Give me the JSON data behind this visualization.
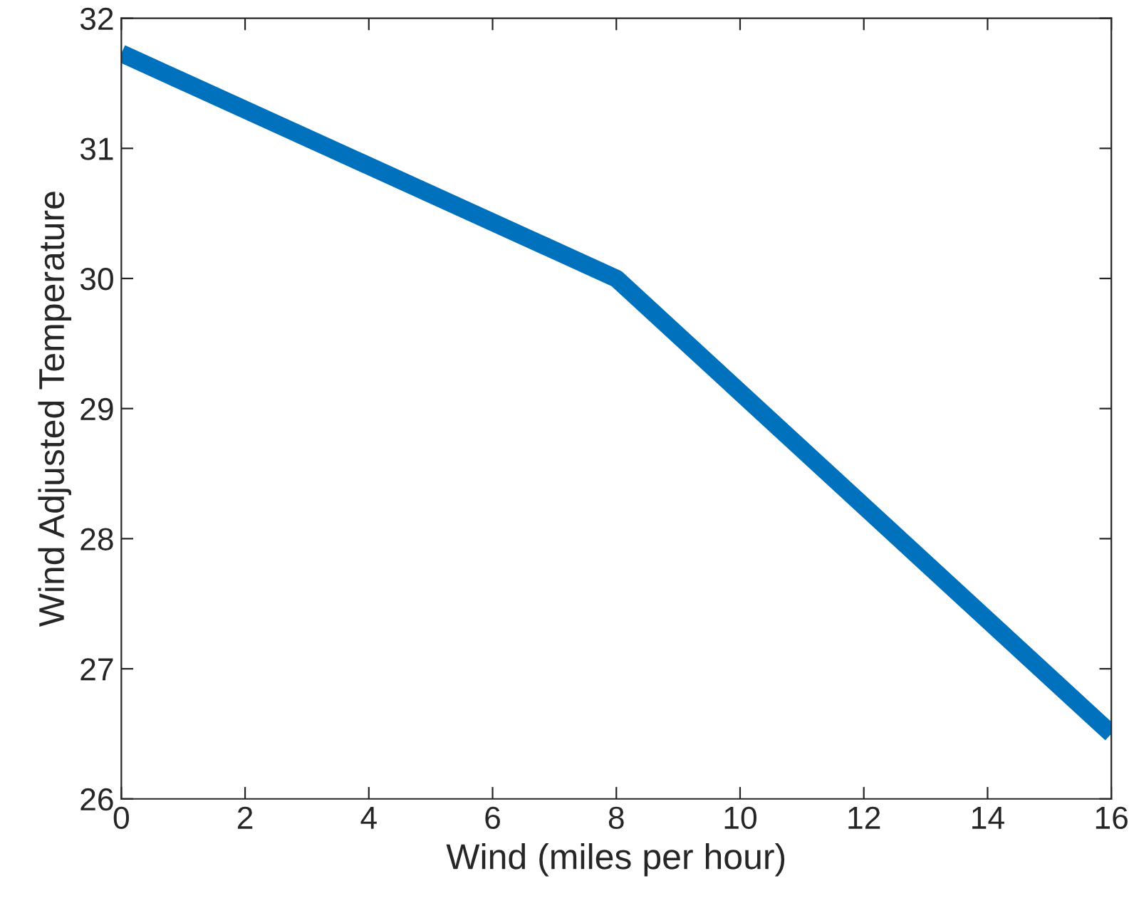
{
  "chart_data": {
    "type": "line",
    "xlabel": "Wind (miles per hour)",
    "ylabel": "Wind Adjusted Temperature",
    "x": [
      0,
      8,
      16
    ],
    "series": [
      {
        "color": "#0072bd",
        "values": [
          31.73,
          30.0,
          26.5
        ]
      }
    ],
    "xlim": [
      0,
      16
    ],
    "xticks": [
      0,
      2,
      4,
      6,
      8,
      10,
      12,
      14,
      16
    ],
    "ylim": [
      26,
      32
    ],
    "yticks": [
      26,
      27,
      28,
      29,
      30,
      31,
      32
    ],
    "grid": false,
    "legend": false,
    "marker": "none",
    "line_style": "solid"
  }
}
